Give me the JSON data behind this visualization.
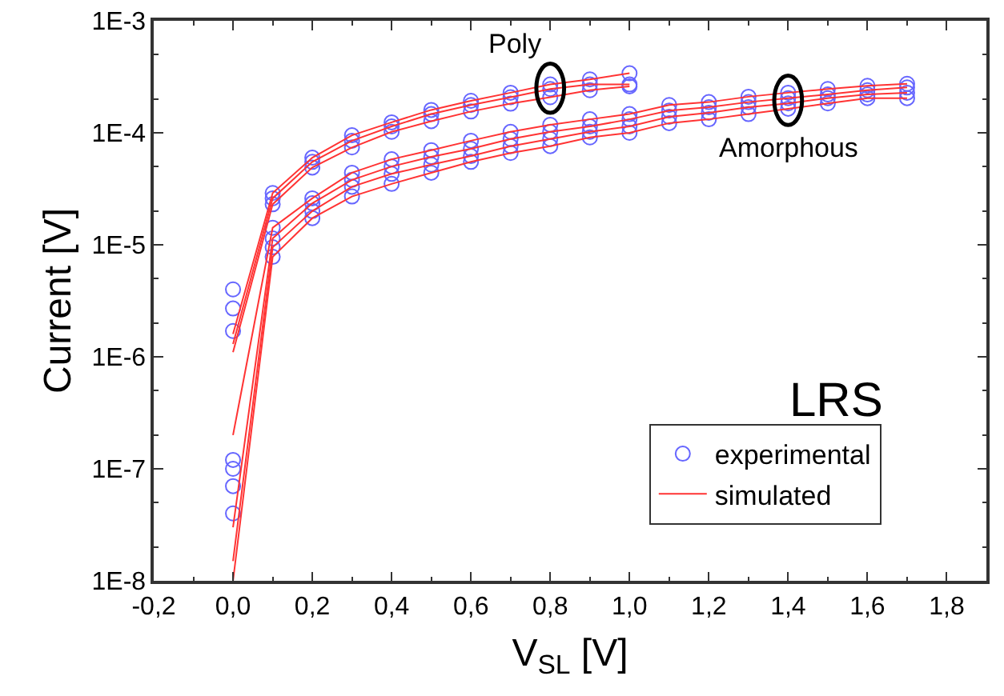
{
  "chart_data": {
    "type": "scatter",
    "xlabel": "V$_{SL}$ [V]",
    "ylabel": "Current [V]",
    "log": "y",
    "legend": "bottom right",
    "xlim": [
      -0.2,
      1.9
    ],
    "xticks": [
      {
        "value": -0.2,
        "label": "-0,2"
      },
      {
        "value": 0.0,
        "label": "0,0"
      },
      {
        "value": 0.2,
        "label": "0,2"
      },
      {
        "value": 0.4,
        "label": "0,4"
      },
      {
        "value": 0.6,
        "label": "0,6"
      },
      {
        "value": 0.8,
        "label": "0,8"
      },
      {
        "value": 1.0,
        "label": "1,0"
      },
      {
        "value": 1.2,
        "label": "1,2"
      },
      {
        "value": 1.4,
        "label": "1,4"
      },
      {
        "value": 1.6,
        "label": "1,6"
      },
      {
        "value": 1.8,
        "label": "1,8"
      }
    ],
    "ylim": [
      1e-08,
      0.001
    ],
    "yticks": [
      {
        "value": 1e-08,
        "label": "1E-8"
      },
      {
        "value": 1e-07,
        "label": "1E-7"
      },
      {
        "value": 1e-06,
        "label": "1E-6"
      },
      {
        "value": 1e-05,
        "label": "1E-5"
      },
      {
        "value": 0.0001,
        "label": "1E-4"
      },
      {
        "value": 0.001,
        "label": "1E-3"
      }
    ],
    "annotations": [
      {
        "text": "Poly",
        "x": 0.8,
        "y": 0.00025
      },
      {
        "text": "Amorphous",
        "x": 1.4,
        "y": 0.000195
      },
      "LRS"
    ],
    "series": [
      {
        "name": "experimental",
        "marker": "circle",
        "color": "#6666ff",
        "x": [
          0,
          0.1,
          0.2,
          0.3,
          0.4,
          0.5,
          0.6,
          0.7,
          0.8,
          0.9,
          1.0
        ],
        "values": [
          4e-06,
          2.9e-05,
          6e-05,
          9.5e-05,
          0.000124,
          0.00016,
          0.000193,
          0.000228,
          0.00027,
          0.0003,
          0.00034
        ]
      },
      {
        "type": "scatter",
        "color": "#6666ff",
        "x": [
          0,
          0.1,
          0.2,
          0.3,
          0.4,
          0.5,
          0.6,
          0.7,
          0.8,
          0.9,
          1.0
        ],
        "values": [
          2.7e-06,
          2.6e-05,
          5.5e-05,
          8.5e-05,
          0.000114,
          0.000147,
          0.000177,
          0.000208,
          0.000246,
          0.00027,
          0.00027
        ]
      },
      {
        "type": "scatter",
        "color": "#6666ff",
        "x": [
          0,
          0.1,
          0.2,
          0.3,
          0.4,
          0.5,
          0.6,
          0.7,
          0.8,
          0.9,
          1.0
        ],
        "values": [
          1.7e-06,
          2.3e-05,
          4.9e-05,
          7.4e-05,
          0.000102,
          0.000127,
          0.000155,
          0.000182,
          0.000208,
          0.00024,
          0.00026
        ]
      },
      {
        "type": "scatter",
        "color": "#6666ff",
        "x": [
          0,
          0.1,
          0.2,
          0.3,
          0.4,
          0.5,
          0.6,
          0.7,
          0.8,
          0.9,
          1.0,
          1.1,
          1.2,
          1.3,
          1.4,
          1.5,
          1.6,
          1.7
        ],
        "values": [
          1.2e-07,
          1.42e-05,
          2.6e-05,
          4.4e-05,
          5.8e-05,
          7e-05,
          8.5e-05,
          0.000102,
          0.000118,
          0.000132,
          0.000147,
          0.000177,
          0.000188,
          0.00021,
          0.000228,
          0.000246,
          0.000263,
          0.000274
        ]
      },
      {
        "type": "scatter",
        "color": "#6666ff",
        "x": [
          0,
          0.1,
          0.2,
          0.3,
          0.4,
          0.5,
          0.6,
          0.7,
          0.8,
          0.9,
          1.0,
          1.1,
          1.2,
          1.3,
          1.4,
          1.5,
          1.6,
          1.7
        ],
        "values": [
          1e-07,
          1.14e-05,
          2.35e-05,
          3.8e-05,
          5e-05,
          6.1e-05,
          7.2e-05,
          8.8e-05,
          0.000102,
          0.000114,
          0.000132,
          0.000158,
          0.000169,
          0.000188,
          0.000204,
          0.00022,
          0.00024,
          0.000254
        ]
      },
      {
        "type": "scatter",
        "color": "#6666ff",
        "x": [
          0,
          0.1,
          0.2,
          0.3,
          0.4,
          0.5,
          0.6,
          0.7,
          0.8,
          0.9,
          1.0,
          1.1,
          1.2,
          1.3,
          1.4,
          1.5,
          1.6,
          1.7
        ],
        "values": [
          7e-08,
          9.5e-06,
          2e-05,
          3.3e-05,
          4.3e-05,
          5.2e-05,
          6.2e-05,
          7.6e-05,
          8.8e-05,
          0.000102,
          0.000114,
          0.000139,
          0.000151,
          0.000169,
          0.000183,
          0.000204,
          0.00022,
          0.000228
        ]
      },
      {
        "type": "scatter",
        "color": "#6666ff",
        "x": [
          0,
          0.1,
          0.2,
          0.3,
          0.4,
          0.5,
          0.6,
          0.7,
          0.8,
          0.9,
          1.0,
          1.1,
          1.2,
          1.3,
          1.4,
          1.5,
          1.6,
          1.7
        ],
        "values": [
          4e-08,
          7.8e-06,
          1.73e-05,
          2.7e-05,
          3.5e-05,
          4.4e-05,
          5.5e-05,
          6.6e-05,
          7.6e-05,
          9.1e-05,
          0.0001,
          0.000122,
          0.000132,
          0.000147,
          0.000164,
          0.000183,
          0.000204,
          0.000204
        ]
      },
      {
        "name": "simulated",
        "type": "line",
        "marker": "none",
        "color": "#ff3333",
        "x": [
          0,
          0.1,
          0.2,
          0.3,
          0.4,
          0.5,
          0.6,
          0.7,
          0.8,
          0.9,
          1.0
        ],
        "values": [
          1.6e-06,
          2.9e-05,
          6e-05,
          9.5e-05,
          0.000124,
          0.00016,
          0.000193,
          0.000228,
          0.00027,
          0.0003,
          0.00034
        ]
      },
      {
        "type": "line",
        "color": "#ff3333",
        "x": [
          0,
          0.1,
          0.2,
          0.3,
          0.4,
          0.5,
          0.6,
          0.7,
          0.8,
          0.9,
          1.0
        ],
        "values": [
          1.3e-06,
          2.6e-05,
          5.5e-05,
          8.5e-05,
          0.000114,
          0.000147,
          0.000177,
          0.000208,
          0.000246,
          0.00027,
          0.00027
        ]
      },
      {
        "type": "line",
        "color": "#ff3333",
        "x": [
          0,
          0.1,
          0.2,
          0.3,
          0.4,
          0.5,
          0.6,
          0.7,
          0.8,
          0.9,
          1.0
        ],
        "values": [
          1.1e-06,
          2.3e-05,
          4.9e-05,
          7.4e-05,
          0.000102,
          0.000127,
          0.000155,
          0.000182,
          0.000208,
          0.00024,
          0.00026
        ]
      },
      {
        "type": "line",
        "color": "#ff3333",
        "x": [
          0,
          0.1,
          0.2,
          0.3,
          0.4,
          0.5,
          0.6,
          0.7,
          0.8,
          0.9,
          1.0,
          1.1,
          1.2,
          1.3,
          1.4,
          1.5,
          1.6,
          1.7
        ],
        "values": [
          2e-07,
          1.42e-05,
          2.6e-05,
          4.4e-05,
          5.8e-05,
          7e-05,
          8.5e-05,
          0.000102,
          0.000118,
          0.000132,
          0.000147,
          0.000177,
          0.000188,
          0.00021,
          0.000228,
          0.000246,
          0.000263,
          0.000274
        ]
      },
      {
        "type": "line",
        "color": "#ff3333",
        "x": [
          0,
          0.1,
          0.2,
          0.3,
          0.4,
          0.5,
          0.6,
          0.7,
          0.8,
          0.9,
          1.0,
          1.1,
          1.2,
          1.3,
          1.4,
          1.5,
          1.6,
          1.7
        ],
        "values": [
          3e-08,
          1.14e-05,
          2.35e-05,
          3.8e-05,
          5e-05,
          6.1e-05,
          7.2e-05,
          8.8e-05,
          0.000102,
          0.000114,
          0.000132,
          0.000158,
          0.000169,
          0.000188,
          0.000204,
          0.00022,
          0.00024,
          0.000254
        ]
      },
      {
        "type": "line",
        "color": "#ff3333",
        "x": [
          0,
          0.1,
          0.2,
          0.3,
          0.4,
          0.5,
          0.6,
          0.7,
          0.8,
          0.9,
          1.0,
          1.1,
          1.2,
          1.3,
          1.4,
          1.5,
          1.6,
          1.7
        ],
        "values": [
          1.5e-08,
          9.5e-06,
          2e-05,
          3.3e-05,
          4.3e-05,
          5.2e-05,
          6.2e-05,
          7.6e-05,
          8.8e-05,
          0.000102,
          0.000114,
          0.000139,
          0.000151,
          0.000169,
          0.000183,
          0.000204,
          0.00022,
          0.000228
        ]
      },
      {
        "type": "line",
        "color": "#ff3333",
        "x": [
          0,
          0.1,
          0.2,
          0.3,
          0.4,
          0.5,
          0.6,
          0.7,
          0.8,
          0.9,
          1.0,
          1.1,
          1.2,
          1.3,
          1.4,
          1.5,
          1.6,
          1.7
        ],
        "values": [
          1e-08,
          7.8e-06,
          1.73e-05,
          2.7e-05,
          3.5e-05,
          4.4e-05,
          5.5e-05,
          6.6e-05,
          7.6e-05,
          9.1e-05,
          0.0001,
          0.000122,
          0.000132,
          0.000147,
          0.000164,
          0.000183,
          0.000204,
          0.000204
        ]
      }
    ]
  }
}
